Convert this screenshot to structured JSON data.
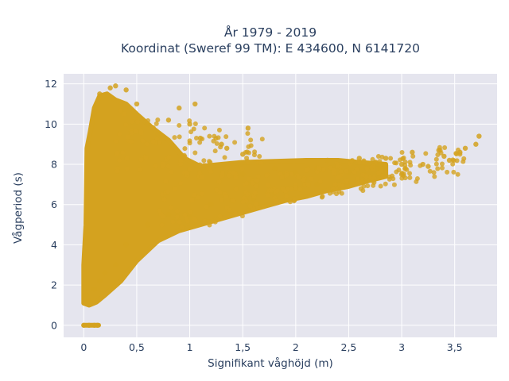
{
  "chart_data": {
    "type": "scatter",
    "title_line1": "År 1979 - 2019",
    "title_line2": "Koordinat (Sweref 99 TM): E 434600, N 6141720",
    "xlabel": "Signifikant våghöjd (m)",
    "ylabel": "Vågperiod (s)",
    "xlim": [
      -0.19,
      3.9
    ],
    "ylim": [
      -0.6,
      12.5
    ],
    "x_ticks": [
      0,
      0.5,
      1,
      1.5,
      2,
      2.5,
      3,
      3.5
    ],
    "x_tick_labels": [
      "0",
      "0,5",
      "1",
      "1,5",
      "2",
      "2,5",
      "3",
      "3,5"
    ],
    "y_ticks": [
      0,
      2,
      4,
      6,
      8,
      10,
      12
    ],
    "y_tick_labels": [
      "0",
      "2",
      "4",
      "6",
      "8",
      "10",
      "12"
    ],
    "grid": true,
    "legend": "none",
    "colors": {
      "marker": "#d4a21f",
      "plot_bg": "#e5e5ee",
      "grid": "#ffffff"
    },
    "series": [
      {
        "points": [
          [
            0,
            0
          ],
          [
            0.05,
            0
          ],
          [
            0.1,
            0
          ],
          [
            0.13,
            0
          ],
          [
            0.02,
            1.5
          ],
          [
            0.05,
            1.2
          ],
          [
            0.1,
            1.8
          ],
          [
            0.15,
            2.2
          ],
          [
            0.2,
            2.6
          ],
          [
            0.3,
            3.0
          ],
          [
            0.05,
            9.0
          ],
          [
            0.1,
            10.5
          ],
          [
            0.15,
            11.5
          ],
          [
            0.25,
            11.8
          ],
          [
            0.3,
            11.9
          ],
          [
            0.4,
            11.7
          ],
          [
            0.5,
            11.0
          ],
          [
            0.6,
            10.0
          ],
          [
            0.7,
            9.5
          ],
          [
            0.8,
            10.2
          ],
          [
            0.9,
            10.8
          ],
          [
            1.0,
            10.0
          ],
          [
            1.1,
            9.3
          ],
          [
            1.3,
            9.0
          ],
          [
            1.5,
            8.5
          ],
          [
            0.4,
            4.0
          ],
          [
            0.6,
            5.0
          ],
          [
            0.8,
            5.5
          ],
          [
            1.0,
            5.5
          ],
          [
            1.2,
            6.0
          ],
          [
            1.4,
            6.2
          ],
          [
            1.6,
            6.3
          ],
          [
            1.8,
            6.6
          ],
          [
            2.0,
            6.8
          ],
          [
            2.2,
            7.0
          ],
          [
            1.5,
            7.5
          ],
          [
            1.8,
            7.8
          ],
          [
            2.0,
            7.6
          ],
          [
            2.2,
            7.8
          ],
          [
            2.5,
            7.6
          ],
          [
            2.8,
            7.8
          ],
          [
            3.0,
            8.0
          ],
          [
            3.2,
            8.0
          ],
          [
            3.4,
            8.4
          ],
          [
            2.3,
            8.2
          ],
          [
            2.6,
            8.3
          ],
          [
            2.85,
            8.3
          ],
          [
            3.1,
            8.6
          ],
          [
            3.35,
            8.7
          ],
          [
            3.55,
            8.6
          ],
          [
            3.6,
            8.8
          ],
          [
            3.7,
            9.0
          ],
          [
            3.73,
            9.4
          ],
          [
            3.0,
            7.5
          ],
          [
            3.25,
            7.9
          ],
          [
            3.45,
            8.2
          ],
          [
            1.05,
            11.0
          ],
          [
            1.35,
            8.8
          ],
          [
            1.55,
            9.8
          ]
        ]
      }
    ]
  }
}
